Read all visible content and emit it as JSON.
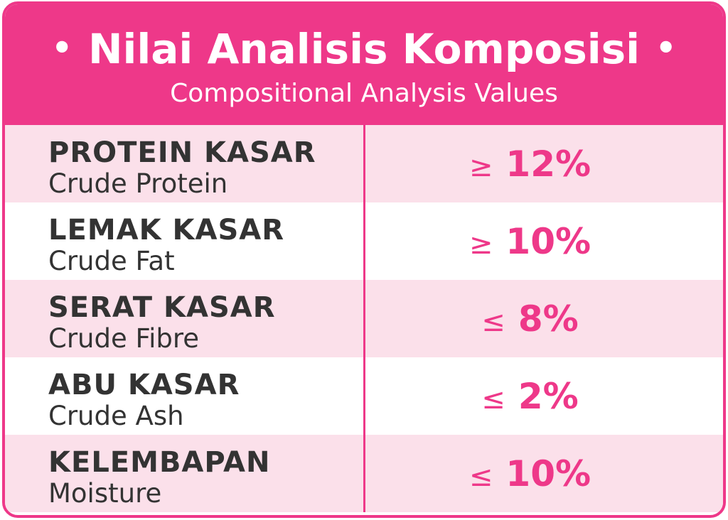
{
  "header": {
    "title": "Nilai Analisis Komposisi",
    "bullet": "•",
    "subtitle": "Compositional Analysis Values"
  },
  "colors": {
    "accent": "#ee3889",
    "row_pink": "#fbe0ea",
    "row_white": "#ffffff",
    "text_dark": "#333333"
  },
  "rows": [
    {
      "name": "PROTEIN KASAR",
      "sub": "Crude Protein",
      "op": "≥",
      "value": "12%"
    },
    {
      "name": "LEMAK KASAR",
      "sub": "Crude Fat",
      "op": "≥",
      "value": "10%"
    },
    {
      "name": "SERAT KASAR",
      "sub": "Crude Fibre",
      "op": "≤",
      "value": "8%"
    },
    {
      "name": "ABU KASAR",
      "sub": "Crude Ash",
      "op": "≤",
      "value": "2%"
    },
    {
      "name": "KELEMBAPAN",
      "sub": "Moisture",
      "op": "≤",
      "value": "10%"
    }
  ]
}
